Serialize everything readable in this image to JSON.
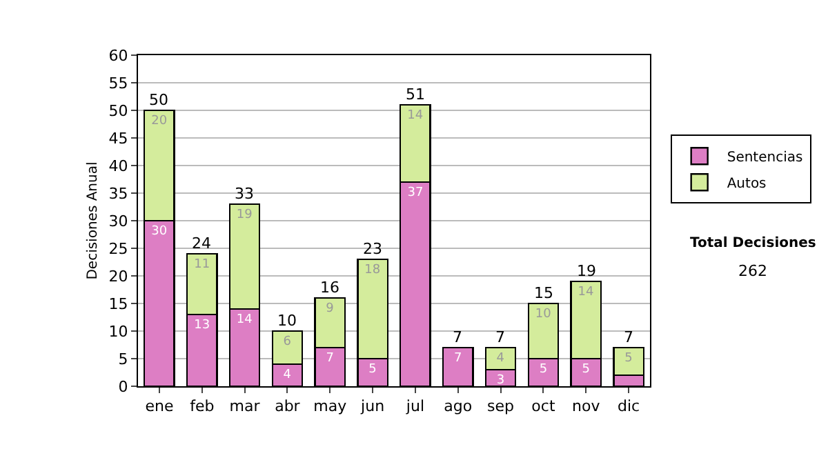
{
  "chart_data": {
    "type": "bar",
    "stacked": true,
    "ylabel": "Decisiones Anual",
    "categories": [
      "ene",
      "feb",
      "mar",
      "abr",
      "may",
      "jun",
      "jul",
      "ago",
      "sep",
      "oct",
      "nov",
      "dic"
    ],
    "series": [
      {
        "name": "Sentencias",
        "color": "#dd7ec4",
        "values": [
          30,
          13,
          14,
          4,
          7,
          5,
          37,
          7,
          3,
          5,
          5,
          2
        ],
        "value_labels": [
          "30",
          "13",
          "14",
          "4",
          "7",
          "5",
          "37",
          "7",
          "3",
          "5",
          "5",
          null
        ]
      },
      {
        "name": "Autos",
        "color": "#d4ec9c",
        "values": [
          20,
          11,
          19,
          6,
          9,
          18,
          14,
          null,
          4,
          10,
          14,
          5
        ],
        "value_labels": [
          "20",
          "11",
          "19",
          "6",
          "9",
          "18",
          "14",
          null,
          "4",
          "10",
          "14",
          "5"
        ]
      }
    ],
    "totals": [
      "50",
      "24",
      "33",
      "10",
      "16",
      "23",
      "51",
      "7",
      "7",
      "15",
      "19",
      "7"
    ],
    "ylim": [
      0,
      60
    ],
    "yticks": [
      0,
      5,
      10,
      15,
      20,
      25,
      30,
      35,
      40,
      45,
      50,
      55,
      60
    ],
    "grid": "y",
    "legend": "right",
    "annotations": [
      "Total Decisiones",
      "262"
    ]
  }
}
